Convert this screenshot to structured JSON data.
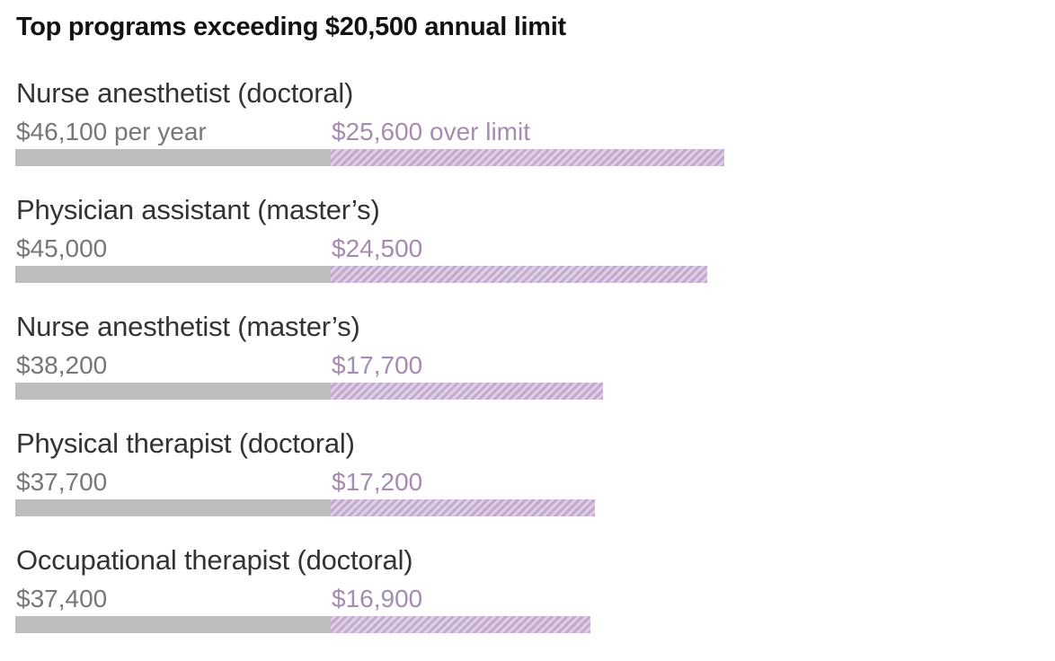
{
  "chart_data": {
    "type": "bar",
    "title": "Top programs exceeding $20,500 annual limit",
    "limit": 20500,
    "categories": [
      "Nurse anesthetist (doctoral)",
      "Physician assistant (master’s)",
      "Nurse anesthetist (master’s)",
      "Physical therapist (doctoral)",
      "Occupational therapist (doctoral)"
    ],
    "total_labels": [
      "$46,100 per year",
      "$45,000",
      "$38,200",
      "$37,700",
      "$37,400"
    ],
    "excess_labels": [
      "$25,600 over limit",
      "$24,500",
      "$17,700",
      "$17,200",
      "$16,900"
    ],
    "series": [
      {
        "values": [
          46100,
          45000,
          38200,
          37700,
          37400
        ]
      }
    ],
    "excess_values": [
      25600,
      24500,
      17700,
      17200,
      16900
    ],
    "colors": {
      "limit_bar": "#bdbdbd",
      "excess_bar": "#c3a9cf",
      "excess_text": "#a58bb1",
      "total_text": "#777777",
      "label_text": "#333333"
    }
  }
}
